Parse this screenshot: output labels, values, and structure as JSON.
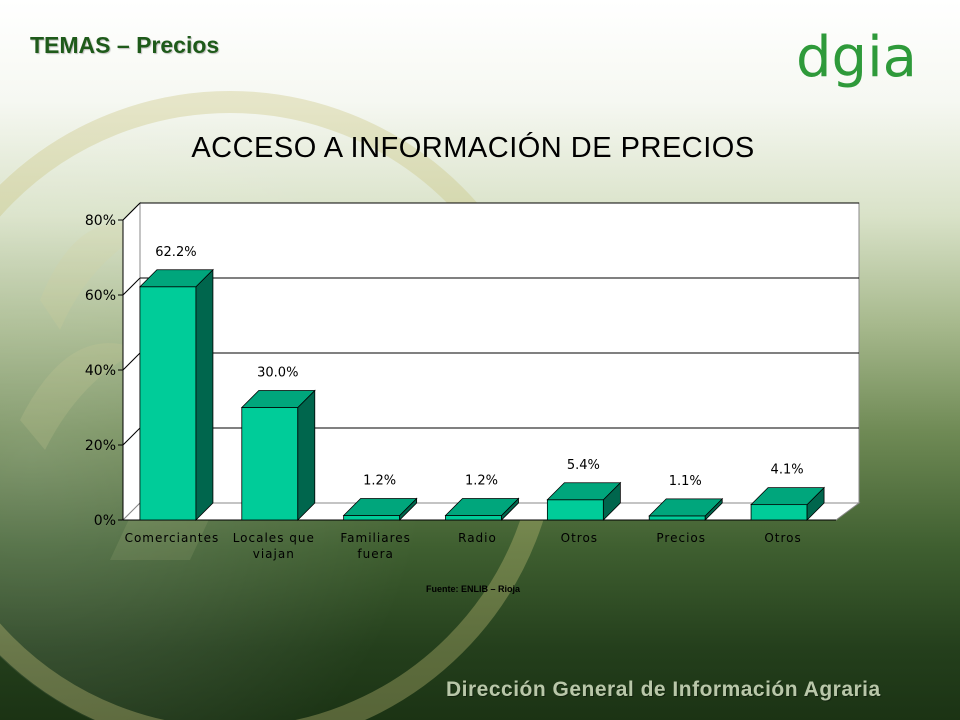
{
  "slide": {
    "title": "TEMAS – Precios",
    "logo": "dgia",
    "source": "Fuente: ENLIB – Rioja",
    "footer": "Dirección General de Información Agraria"
  },
  "colors": {
    "bar_front": "#00cc99",
    "bar_side": "#00664d",
    "bar_top": "#00a67c",
    "title_green": "#1e5a1a",
    "logo_green": "#2e9a3a"
  },
  "chart_data": {
    "type": "bar",
    "title": "ACCESO A INFORMACIÓN DE PRECIOS",
    "categories": [
      [
        "Comerciantes"
      ],
      [
        "Locales que",
        "viajan"
      ],
      [
        "Familiares",
        "fuera"
      ],
      [
        "Radio"
      ],
      [
        "Otros"
      ],
      [
        "Precios"
      ],
      [
        "Otros"
      ]
    ],
    "values": [
      62.2,
      30.0,
      1.2,
      1.2,
      5.4,
      1.1,
      4.1
    ],
    "data_labels": [
      "62.2%",
      "30.0%",
      "1.2%",
      "1.2%",
      "5.4%",
      "1.1%",
      "4.1%"
    ],
    "yticks": [
      "0%",
      "20%",
      "40%",
      "60%",
      "80%"
    ],
    "ylim": [
      0,
      80
    ],
    "grid": true,
    "three_d": true
  }
}
